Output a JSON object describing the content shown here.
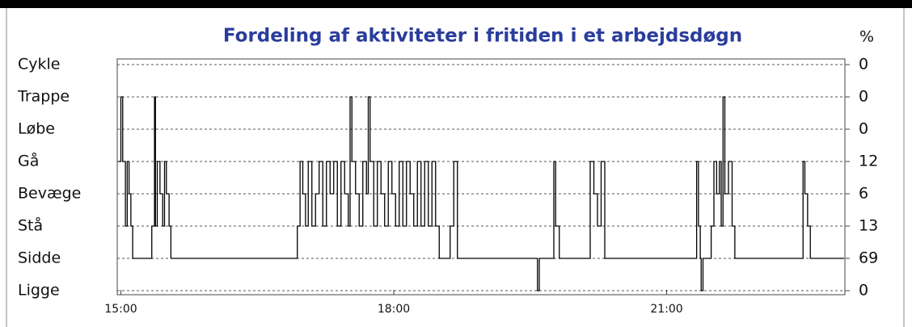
{
  "chart_data": {
    "type": "step",
    "title": "Fordeling af aktiviteter i fritiden i et arbejdsdøgn",
    "y2label": "%",
    "color": "#000000",
    "xlim": [
      14.96,
      22.96
    ],
    "xticks": [
      {
        "value": 15,
        "label": "15:00"
      },
      {
        "value": 18,
        "label": "18:00"
      },
      {
        "value": 21,
        "label": "21:00"
      }
    ],
    "ylim": [
      0,
      7
    ],
    "yticks": [
      {
        "value": 0,
        "label": "Ligge"
      },
      {
        "value": 1,
        "label": "Sidde"
      },
      {
        "value": 2,
        "label": "Stå"
      },
      {
        "value": 3,
        "label": "Bevæge"
      },
      {
        "value": 4,
        "label": "Gå"
      },
      {
        "value": 5,
        "label": "Løbe"
      },
      {
        "value": 6,
        "label": "Trappe"
      },
      {
        "value": 7,
        "label": "Cykle"
      }
    ],
    "y2_labels": [
      0,
      69,
      13,
      6,
      12,
      0,
      0,
      0
    ],
    "grid": true,
    "x": [
      14.97,
      15.0,
      15.02,
      15.05,
      15.07,
      15.09,
      15.11,
      15.13,
      15.34,
      15.37,
      15.38,
      15.4,
      15.43,
      15.46,
      15.48,
      15.5,
      15.53,
      15.55,
      16.94,
      16.97,
      17.0,
      17.03,
      17.06,
      17.1,
      17.14,
      17.18,
      17.22,
      17.26,
      17.3,
      17.34,
      17.38,
      17.42,
      17.46,
      17.5,
      17.52,
      17.54,
      17.58,
      17.62,
      17.66,
      17.7,
      17.72,
      17.74,
      17.78,
      17.82,
      17.86,
      17.9,
      17.94,
      17.98,
      18.02,
      18.06,
      18.1,
      18.14,
      18.18,
      18.22,
      18.26,
      18.3,
      18.34,
      18.38,
      18.42,
      18.46,
      18.5,
      18.62,
      18.66,
      18.7,
      19.58,
      19.6,
      19.76,
      19.78,
      19.82,
      20.16,
      20.2,
      20.24,
      20.28,
      20.32,
      21.33,
      21.35,
      21.37,
      21.38,
      21.4,
      21.49,
      21.52,
      21.55,
      21.58,
      21.6,
      21.62,
      21.64,
      21.68,
      21.72,
      21.75,
      22.5,
      22.52,
      22.55,
      22.58,
      22.95
    ],
    "values": [
      4,
      6,
      4,
      2,
      4,
      3,
      2,
      1,
      2,
      6,
      2,
      4,
      3,
      2,
      4,
      3,
      2,
      1,
      2,
      4,
      3,
      2,
      4,
      2,
      3,
      4,
      2,
      4,
      3,
      4,
      2,
      4,
      3,
      2,
      6,
      4,
      3,
      2,
      4,
      3,
      6,
      4,
      2,
      4,
      3,
      2,
      4,
      3,
      2,
      4,
      2,
      4,
      3,
      2,
      4,
      2,
      4,
      2,
      4,
      2,
      1,
      2,
      4,
      1,
      0,
      1,
      4,
      2,
      1,
      4,
      3,
      2,
      4,
      1,
      4,
      2,
      1,
      0,
      1,
      2,
      4,
      3,
      4,
      2,
      6,
      3,
      4,
      2,
      1,
      4,
      3,
      2,
      1,
      1
    ]
  }
}
